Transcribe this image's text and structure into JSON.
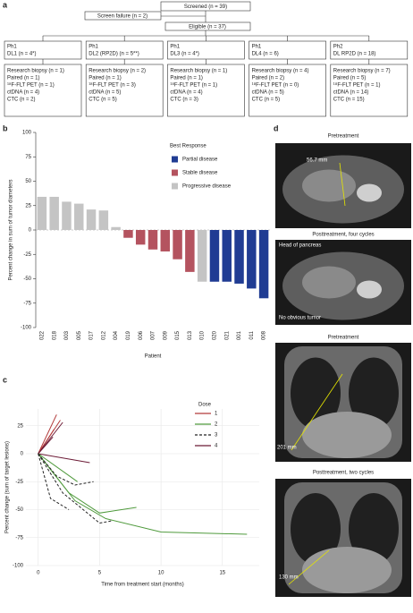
{
  "panel_a": {
    "label": "a",
    "screened": "Screened (n = 39)",
    "screen_failure": "Screen failure (n = 2)",
    "eligible": "Eligible (n = 37)",
    "arms": [
      {
        "phase": "Ph1",
        "level": "DL1 (n = 4*)",
        "details": [
          "Research biopsy (n = 1)",
          "Paired (n = 1)",
          "¹⁸F-FLT PET (n = 1)",
          "ctDNA (n = 4)",
          "CTC (n = 2)"
        ]
      },
      {
        "phase": "Ph1",
        "level": "DL2 (RP2D) (n = 5**)",
        "details": [
          "Research biopsy (n = 2)",
          "Paired (n = 1)",
          "¹⁸F-FLT PET (n = 3)",
          "ctDNA (n = 5)",
          "CTC (n = 5)"
        ]
      },
      {
        "phase": "Ph1",
        "level": "DL3 (n = 4*)",
        "details": [
          "Research biopsy (n = 1)",
          "Paired (n = 1)",
          "¹⁸F-FLT PET (n = 1)",
          "ctDNA (n = 4)",
          "CTC (n = 3)"
        ]
      },
      {
        "phase": "Ph1",
        "level": "DL4 (n = 6)",
        "details": [
          "Research biopsy (n = 4)",
          "Paired (n = 2)",
          "¹⁸F-FLT PET (n = 0)",
          "ctDNA (n = 5)",
          "CTC (n = 5)"
        ]
      },
      {
        "phase": "Ph2",
        "level": "DL RP2D (n = 18)",
        "details": [
          "Research biopsy (n = 7)",
          "Paired (n = 5)",
          "¹⁸F-FLT PET (n = 1)",
          "ctDNA (n = 14)",
          "CTC (n = 15)"
        ]
      }
    ]
  },
  "chart_data": [
    {
      "type": "bar",
      "panel_label": "b",
      "y_label": "Percent change in sum of tumor diameters",
      "x_label": "Patient",
      "categories": [
        "022",
        "018",
        "003",
        "005",
        "017",
        "012",
        "004",
        "019",
        "006",
        "007",
        "009",
        "015",
        "013",
        "010",
        "020",
        "021",
        "001",
        "011",
        "008"
      ],
      "values": [
        34,
        34,
        29,
        27,
        21,
        20,
        3,
        -8,
        -15,
        -20,
        -22,
        -30,
        -43,
        -53,
        -53,
        -53,
        -55,
        -60,
        -70
      ],
      "bar_colors": [
        "#c4c4c4",
        "#c4c4c4",
        "#c4c4c4",
        "#c4c4c4",
        "#c4c4c4",
        "#c4c4c4",
        "#c4c4c4",
        "#b4535f",
        "#b4535f",
        "#b4535f",
        "#b4535f",
        "#b4535f",
        "#b4535f",
        "#c4c4c4",
        "#203c93",
        "#203c93",
        "#203c93",
        "#203c93",
        "#203c93"
      ],
      "ylim": [
        -100,
        100
      ],
      "yticks": [
        100,
        75,
        50,
        25,
        0,
        -25,
        -50,
        -75,
        -100
      ],
      "legend": {
        "title": "Best Response",
        "items": [
          {
            "name": "Partial disease",
            "color": "#203c93"
          },
          {
            "name": "Stable disease",
            "color": "#b4535f"
          },
          {
            "name": "Progressive disease",
            "color": "#c4c4c4"
          }
        ]
      }
    },
    {
      "type": "line",
      "panel_label": "c",
      "y_label": "Percent change (sum of target lesions)",
      "x_label": "Time from treatment start (months)",
      "xlim": [
        -1,
        18
      ],
      "xticks": [
        0,
        5,
        10,
        15
      ],
      "ylim": [
        -100,
        40
      ],
      "yticks": [
        25,
        0,
        -25,
        -50,
        -75,
        -100
      ],
      "legend": {
        "title": "Dose",
        "items": [
          {
            "name": "1",
            "color": "#b23a3a",
            "dash": false
          },
          {
            "name": "2",
            "color": "#4f9a3c",
            "dash": false
          },
          {
            "name": "3",
            "color": "#222222",
            "dash": true
          },
          {
            "name": "4",
            "color": "#6b1a35",
            "dash": false
          }
        ]
      },
      "series": [
        {
          "color": "#b23a3a",
          "dash": false,
          "x": [
            0,
            1.5
          ],
          "values": [
            0,
            35
          ]
        },
        {
          "color": "#b23a3a",
          "dash": false,
          "x": [
            0,
            1.8
          ],
          "values": [
            0,
            30
          ]
        },
        {
          "color": "#b23a3a",
          "dash": false,
          "x": [
            0,
            1.3
          ],
          "values": [
            0,
            22
          ]
        },
        {
          "color": "#6b1a35",
          "dash": false,
          "x": [
            0,
            2
          ],
          "values": [
            0,
            28
          ]
        },
        {
          "color": "#6b1a35",
          "dash": false,
          "x": [
            0,
            1.2
          ],
          "values": [
            0,
            15
          ]
        },
        {
          "color": "#6b1a35",
          "dash": false,
          "x": [
            0,
            4.2
          ],
          "values": [
            0,
            -8
          ]
        },
        {
          "color": "#4f9a3c",
          "dash": false,
          "x": [
            0,
            3.2
          ],
          "values": [
            0,
            -25
          ]
        },
        {
          "color": "#4f9a3c",
          "dash": false,
          "x": [
            0,
            2.5,
            5,
            8
          ],
          "values": [
            0,
            -35,
            -53,
            -48
          ]
        },
        {
          "color": "#4f9a3c",
          "dash": false,
          "x": [
            0,
            3,
            5.5,
            10,
            17
          ],
          "values": [
            0,
            -42,
            -58,
            -70,
            -72
          ]
        },
        {
          "color": "#222222",
          "dash": true,
          "x": [
            0,
            1.5,
            3,
            4.5
          ],
          "values": [
            0,
            -20,
            -28,
            -25
          ]
        },
        {
          "color": "#222222",
          "dash": true,
          "x": [
            0,
            1,
            2.5
          ],
          "values": [
            0,
            -40,
            -50
          ]
        },
        {
          "color": "#222222",
          "dash": true,
          "x": [
            0,
            2,
            5,
            6
          ],
          "values": [
            0,
            -35,
            -62,
            -60
          ]
        }
      ]
    }
  ],
  "panel_d": {
    "label": "d",
    "images": [
      {
        "caption": "Pretreatment",
        "annotations": [
          "56.7 mm"
        ]
      },
      {
        "caption": "Posttreatment, four cycles",
        "annotations": [
          "Head of pancreas",
          "No obvious tumor"
        ]
      },
      {
        "caption": "Pretreatment",
        "annotations": [
          "201 mm"
        ]
      },
      {
        "caption": "Posttreatment, two cycles",
        "annotations": [
          "130 mm"
        ]
      }
    ]
  }
}
